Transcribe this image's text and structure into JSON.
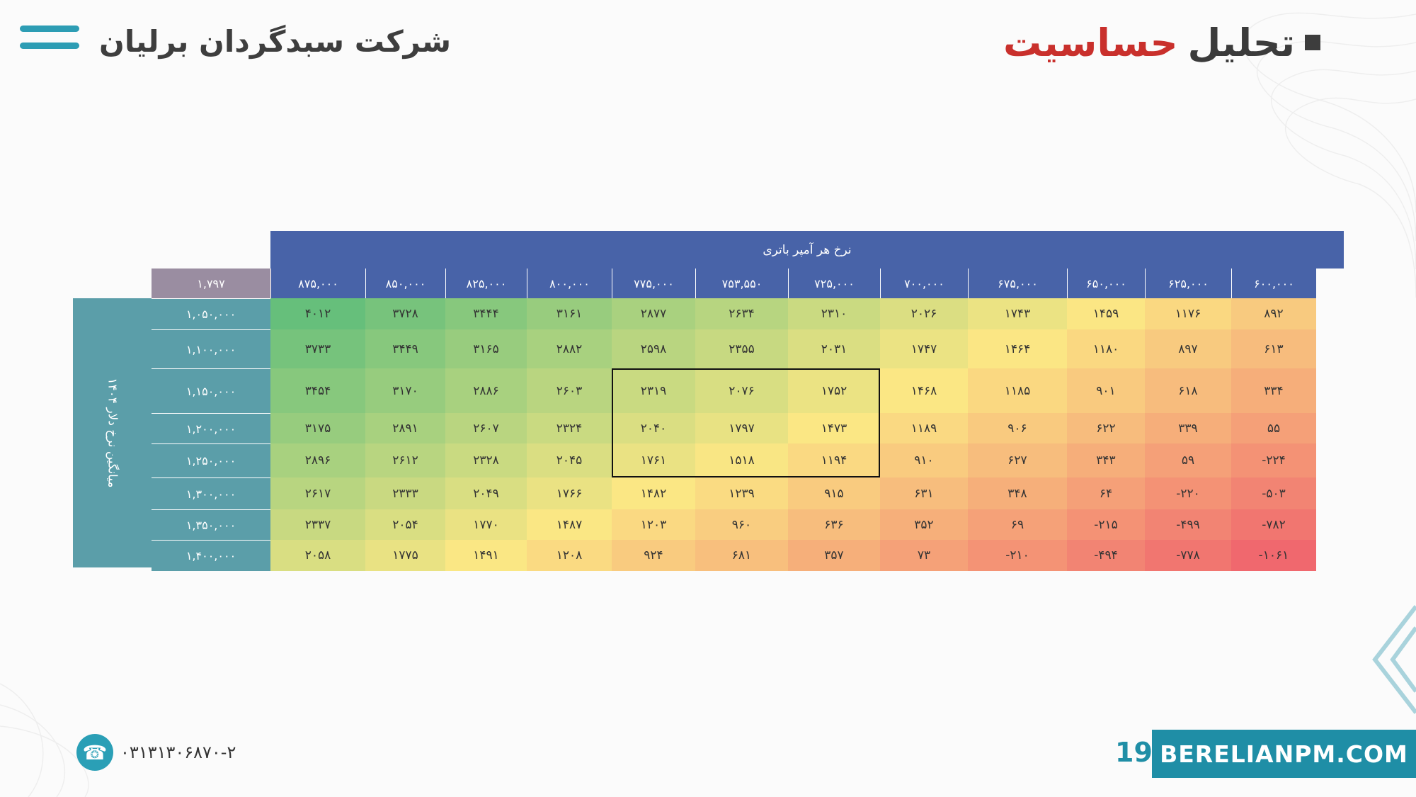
{
  "header": {
    "company_name": "شرکت سبدگردان برلیان",
    "title_main": "تحلیل",
    "title_accent": "حساسیت"
  },
  "table": {
    "column_axis_label": "نرخ هر آمپر باتری",
    "row_axis_label": "میانگین نرخ دلار ۱۴۰۴",
    "corner_value": "۱,۷۹۷",
    "columns": [
      "۸۷۵,۰۰۰",
      "۸۵۰,۰۰۰",
      "۸۲۵,۰۰۰",
      "۸۰۰,۰۰۰",
      "۷۷۵,۰۰۰",
      "۷۵۳,۵۵۰",
      "۷۲۵,۰۰۰",
      "۷۰۰,۰۰۰",
      "۶۷۵,۰۰۰",
      "۶۵۰,۰۰۰",
      "۶۲۵,۰۰۰",
      "۶۰۰,۰۰۰"
    ],
    "rows": [
      {
        "label": "۱,۰۵۰,۰۰۰",
        "cells": [
          "۴۰۱۲",
          "۳۷۲۸",
          "۳۴۴۴",
          "۳۱۶۱",
          "۲۸۷۷",
          "۲۶۳۴",
          "۲۳۱۰",
          "۲۰۲۶",
          "۱۷۴۳",
          "۱۴۵۹",
          "۱۱۷۶",
          "۸۹۲"
        ]
      },
      {
        "label": "۱,۱۰۰,۰۰۰",
        "cells": [
          "۳۷۳۳",
          "۳۴۴۹",
          "۳۱۶۵",
          "۲۸۸۲",
          "۲۵۹۸",
          "۲۳۵۵",
          "۲۰۳۱",
          "۱۷۴۷",
          "۱۴۶۴",
          "۱۱۸۰",
          "۸۹۷",
          "۶۱۳"
        ]
      },
      {
        "label": "۱,۱۵۰,۰۰۰",
        "cells": [
          "۳۴۵۴",
          "۳۱۷۰",
          "۲۸۸۶",
          "۲۶۰۳",
          "۲۳۱۹",
          "۲۰۷۶",
          "۱۷۵۲",
          "۱۴۶۸",
          "۱۱۸۵",
          "۹۰۱",
          "۶۱۸",
          "۳۳۴"
        ]
      },
      {
        "label": "۱,۲۰۰,۰۰۰",
        "cells": [
          "۳۱۷۵",
          "۲۸۹۱",
          "۲۶۰۷",
          "۲۳۲۴",
          "۲۰۴۰",
          "۱۷۹۷",
          "۱۴۷۳",
          "۱۱۸۹",
          "۹۰۶",
          "۶۲۲",
          "۳۳۹",
          "۵۵"
        ]
      },
      {
        "label": "۱,۲۵۰,۰۰۰",
        "cells": [
          "۲۸۹۶",
          "۲۶۱۲",
          "۲۳۲۸",
          "۲۰۴۵",
          "۱۷۶۱",
          "۱۵۱۸",
          "۱۱۹۴",
          "۹۱۰",
          "۶۲۷",
          "۳۴۳",
          "۵۹",
          "-۲۲۴"
        ]
      },
      {
        "label": "۱,۳۰۰,۰۰۰",
        "cells": [
          "۲۶۱۷",
          "۲۳۳۳",
          "۲۰۴۹",
          "۱۷۶۶",
          "۱۴۸۲",
          "۱۲۳۹",
          "۹۱۵",
          "۶۳۱",
          "۳۴۸",
          "۶۴",
          "-۲۲۰",
          "-۵۰۳"
        ]
      },
      {
        "label": "۱,۳۵۰,۰۰۰",
        "cells": [
          "۲۳۳۷",
          "۲۰۵۴",
          "۱۷۷۰",
          "۱۴۸۷",
          "۱۲۰۳",
          "۹۶۰",
          "۶۳۶",
          "۳۵۲",
          "۶۹",
          "-۲۱۵",
          "-۴۹۹",
          "-۷۸۲"
        ]
      },
      {
        "label": "۱,۴۰۰,۰۰۰",
        "cells": [
          "۲۰۵۸",
          "۱۷۷۵",
          "۱۴۹۱",
          "۱۲۰۸",
          "۹۲۴",
          "۶۸۱",
          "۳۵۷",
          "۷۳",
          "-۲۱۰",
          "-۴۹۴",
          "-۷۷۸",
          "-۱۰۶۱"
        ]
      }
    ],
    "values_numeric": [
      [
        4012,
        3728,
        3444,
        3161,
        2877,
        2634,
        2310,
        2026,
        1743,
        1459,
        1176,
        892
      ],
      [
        3733,
        3449,
        3165,
        2882,
        2598,
        2355,
        2031,
        1747,
        1464,
        1180,
        897,
        613
      ],
      [
        3454,
        3170,
        2886,
        2603,
        2319,
        2076,
        1752,
        1468,
        1185,
        901,
        618,
        334
      ],
      [
        3175,
        2891,
        2607,
        2324,
        2040,
        1797,
        1473,
        1189,
        906,
        622,
        339,
        55
      ],
      [
        2896,
        2612,
        2328,
        2045,
        1761,
        1518,
        1194,
        910,
        627,
        343,
        59,
        -224
      ],
      [
        2617,
        2333,
        2049,
        1766,
        1482,
        1239,
        915,
        631,
        348,
        64,
        -220,
        -503
      ],
      [
        2337,
        2054,
        1770,
        1487,
        1203,
        960,
        636,
        352,
        69,
        -215,
        -499,
        -782
      ],
      [
        2058,
        1775,
        1491,
        1208,
        924,
        681,
        357,
        73,
        -210,
        -494,
        -778,
        -1061
      ]
    ],
    "color_scale": {
      "low": "#f0686e",
      "mid": "#fbe784",
      "high": "#66bf7b"
    }
  },
  "footer": {
    "phone_icon": "phone-icon",
    "phone": "۰۳۱۳۱۳۰۶۸۷۰-۲",
    "page_number": "19",
    "website": "BERELIANPM.COM"
  }
}
